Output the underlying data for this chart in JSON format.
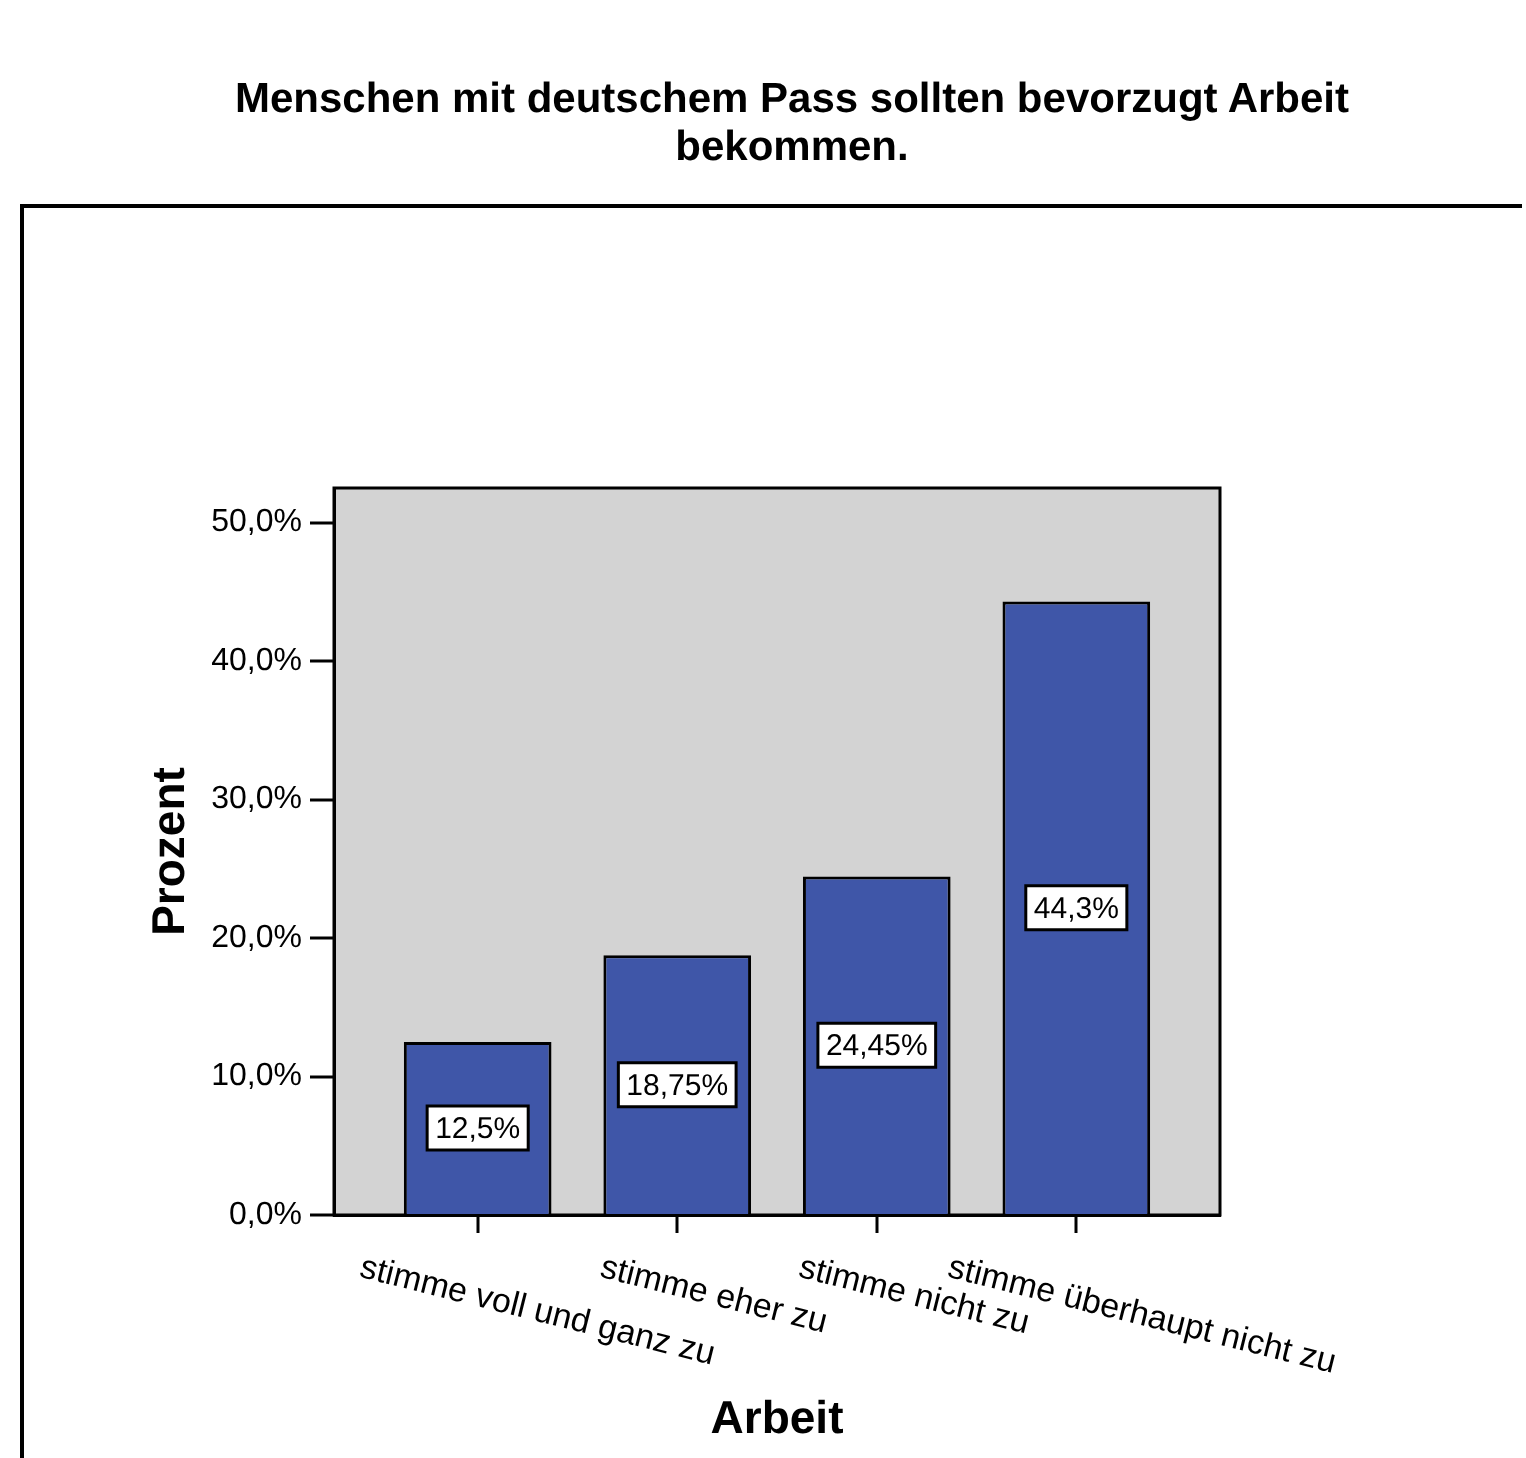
{
  "chart_data": {
    "type": "bar",
    "title": "Menschen mit deutschem Pass sollten bevorzugt Arbeit bekommen.",
    "xlabel": "Arbeit",
    "ylabel": "Prozent",
    "categories": [
      "stimme voll und ganz zu",
      "stimme eher zu",
      "stimme nicht zu",
      "stimme überhaupt nicht zu"
    ],
    "values": [
      12.5,
      18.75,
      24.45,
      44.3
    ],
    "color": "#3f56a8",
    "value_labels": [
      "12,5%",
      "18,75%",
      "24,45%",
      "44,3%"
    ],
    "ylim": [
      0,
      52.5
    ],
    "yticks": [
      {
        "value": 0,
        "label": "0,0%"
      },
      {
        "value": 10,
        "label": "10,0%"
      },
      {
        "value": 20,
        "label": "20,0%"
      },
      {
        "value": 30,
        "label": "30,0%"
      },
      {
        "value": 40,
        "label": "40,0%"
      },
      {
        "value": 50,
        "label": "50,0%"
      }
    ]
  }
}
